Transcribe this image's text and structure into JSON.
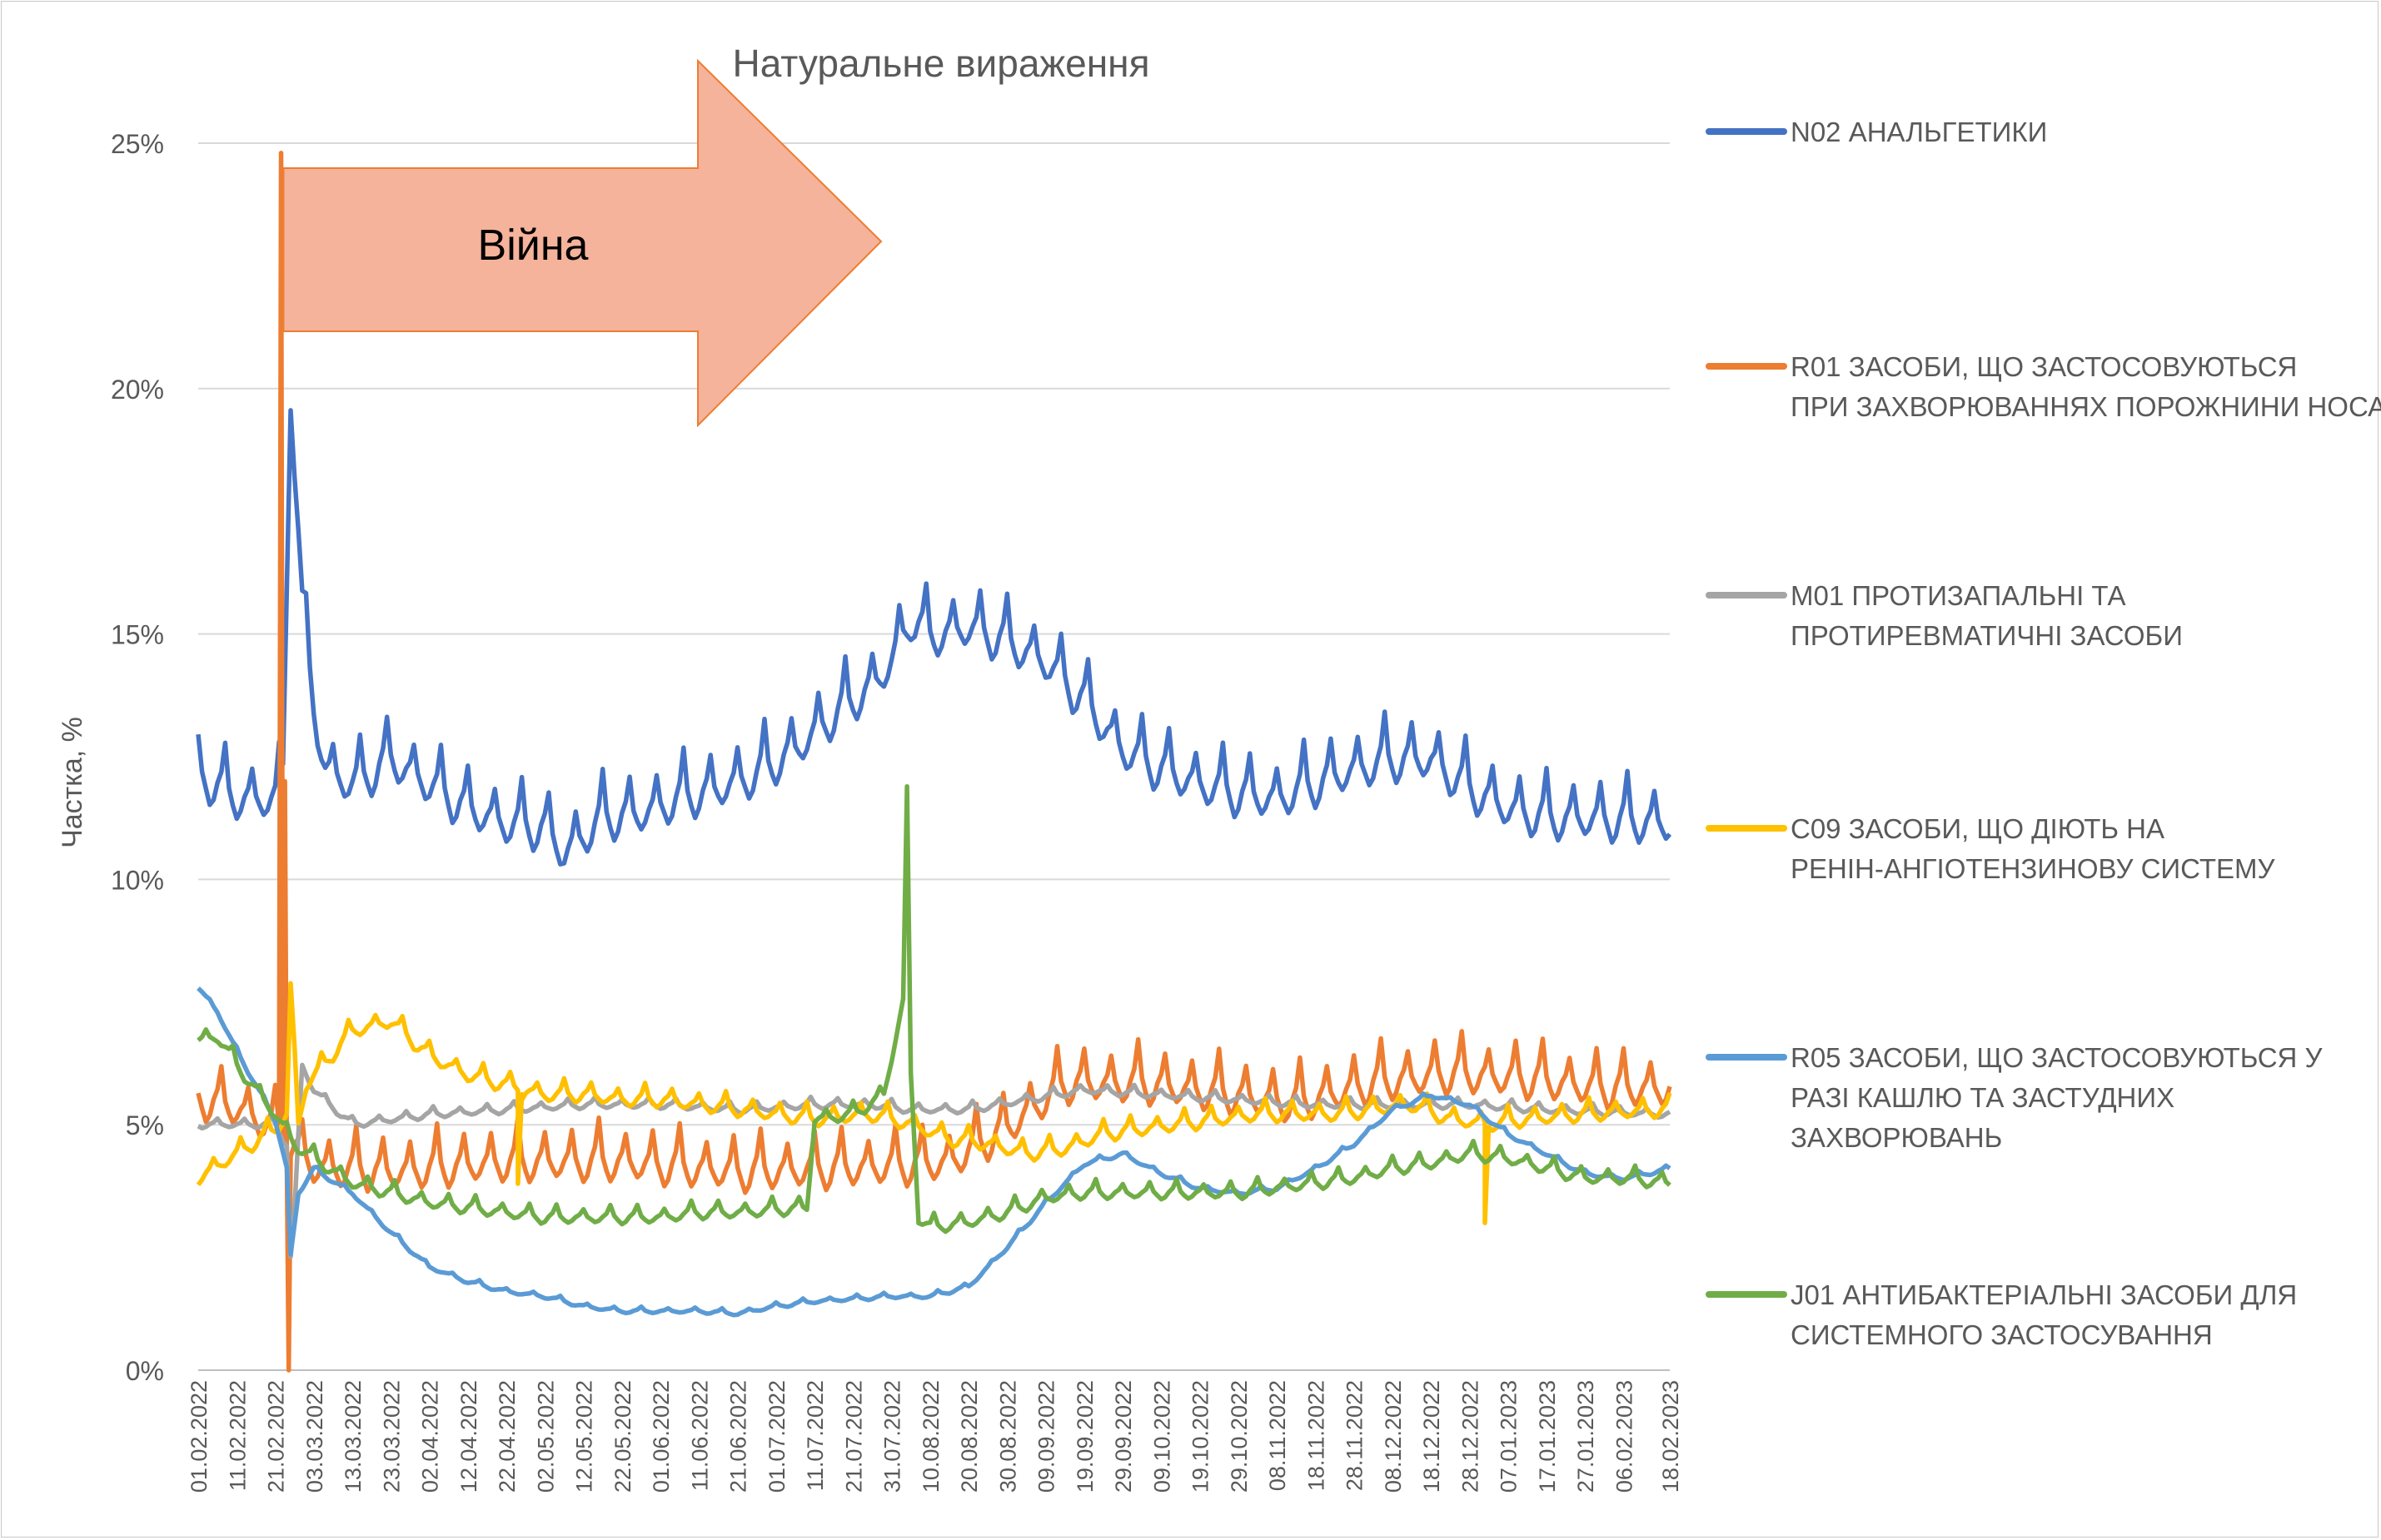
{
  "chart_data": {
    "type": "line",
    "title": "Натуральне вираження",
    "xlabel": "",
    "ylabel": "Частка, %",
    "ylim": [
      0,
      25
    ],
    "yticks": [
      "0%",
      "5%",
      "10%",
      "15%",
      "20%",
      "25%"
    ],
    "x_range": [
      "01.02.2022",
      "18.02.2023"
    ],
    "xticks": [
      "01.02.2022",
      "11.02.2022",
      "21.02.2022",
      "03.03.2022",
      "13.03.2022",
      "23.03.2022",
      "02.04.2022",
      "12.04.2022",
      "22.04.2022",
      "02.05.2022",
      "12.05.2022",
      "22.05.2022",
      "01.06.2022",
      "11.06.2022",
      "21.06.2022",
      "01.07.2022",
      "11.07.2022",
      "21.07.2022",
      "31.07.2022",
      "10.08.2022",
      "20.08.2022",
      "30.08.2022",
      "09.09.2022",
      "19.09.2022",
      "29.09.2022",
      "09.10.2022",
      "19.10.2022",
      "29.10.2022",
      "08.11.2022",
      "18.11.2022",
      "28.11.2022",
      "08.12.2022",
      "18.12.2022",
      "28.12.2022",
      "07.01.2023",
      "17.01.2023",
      "27.01.2023",
      "06.02.2023",
      "18.02.2023"
    ],
    "grid": true,
    "legend": "right",
    "annotation": {
      "label": "Війна",
      "start": "24.02.2022",
      "fill": "#f4b39a",
      "stroke": "#ed7d31"
    },
    "series": [
      {
        "name": "N02 АНАЛЬГЕТИКИ",
        "color": "#4472c4",
        "weekly_amp": 0.9,
        "points": [
          [
            0,
            12.1
          ],
          [
            10,
            11.6
          ],
          [
            20,
            11.6
          ],
          [
            22,
            12.2
          ],
          [
            24,
            20.0
          ],
          [
            27,
            15.5
          ],
          [
            30,
            13.5
          ],
          [
            33,
            12.2
          ],
          [
            40,
            11.9
          ],
          [
            50,
            12.4
          ],
          [
            60,
            11.9
          ],
          [
            70,
            11.4
          ],
          [
            80,
            11.1
          ],
          [
            90,
            11.0
          ],
          [
            95,
            10.5
          ],
          [
            105,
            11.2
          ],
          [
            115,
            11.3
          ],
          [
            125,
            11.6
          ],
          [
            135,
            11.8
          ],
          [
            145,
            12.1
          ],
          [
            155,
            12.6
          ],
          [
            165,
            13.3
          ],
          [
            175,
            13.9
          ],
          [
            180,
            14.4
          ],
          [
            185,
            15.3
          ],
          [
            190,
            14.9
          ],
          [
            200,
            15.1
          ],
          [
            210,
            14.8
          ],
          [
            220,
            14.4
          ],
          [
            230,
            13.6
          ],
          [
            240,
            12.6
          ],
          [
            250,
            12.2
          ],
          [
            260,
            11.9
          ],
          [
            270,
            11.7
          ],
          [
            280,
            11.6
          ],
          [
            290,
            11.9
          ],
          [
            300,
            12.2
          ],
          [
            310,
            12.4
          ],
          [
            320,
            12.4
          ],
          [
            330,
            11.8
          ],
          [
            340,
            11.4
          ],
          [
            350,
            11.2
          ],
          [
            360,
            11.2
          ],
          [
            382,
            11.1
          ]
        ]
      },
      {
        "name": "R01 ЗАСОБИ, ЩО ЗАСТОСОВУЮТЬСЯ ПРИ ЗАХВОРЮВАННЯХ ПОРОЖНИНИ НОСА",
        "color": "#ed7d31",
        "weekly_amp": 0.8,
        "points": [
          [
            0,
            5.5
          ],
          [
            10,
            5.3
          ],
          [
            20,
            4.9
          ],
          [
            23,
            4.7
          ],
          [
            25,
            4.5
          ],
          [
            30,
            4.1
          ],
          [
            50,
            4.0
          ],
          [
            80,
            4.2
          ],
          [
            110,
            4.2
          ],
          [
            140,
            4.0
          ],
          [
            175,
            4.1
          ],
          [
            195,
            4.2
          ],
          [
            210,
            4.9
          ],
          [
            225,
            5.8
          ],
          [
            245,
            5.8
          ],
          [
            265,
            5.6
          ],
          [
            285,
            5.4
          ],
          [
            305,
            5.8
          ],
          [
            325,
            6.0
          ],
          [
            345,
            5.9
          ],
          [
            365,
            5.7
          ],
          [
            382,
            5.7
          ]
        ],
        "spikes": [
          [
            21.5,
            24.8
          ],
          [
            22.5,
            12
          ],
          [
            23.5,
            0
          ]
        ]
      },
      {
        "name": "M01 ПРОТИЗАПАЛЬНІ ТА ПРОТИРЕВМАТИЧНІ ЗАСОБИ",
        "color": "#a5a5a5",
        "weekly_amp": 0.15,
        "points": [
          [
            0,
            5.0
          ],
          [
            10,
            5.0
          ],
          [
            20,
            5.0
          ],
          [
            23,
            4.6
          ],
          [
            24,
            2.3
          ],
          [
            25,
            3.2
          ],
          [
            27,
            6.2
          ],
          [
            30,
            5.7
          ],
          [
            40,
            5.0
          ],
          [
            60,
            5.2
          ],
          [
            80,
            5.3
          ],
          [
            100,
            5.4
          ],
          [
            120,
            5.4
          ],
          [
            140,
            5.3
          ],
          [
            160,
            5.4
          ],
          [
            175,
            5.4
          ],
          [
            185,
            5.3
          ],
          [
            200,
            5.3
          ],
          [
            215,
            5.5
          ],
          [
            230,
            5.7
          ],
          [
            250,
            5.6
          ],
          [
            270,
            5.5
          ],
          [
            290,
            5.4
          ],
          [
            310,
            5.4
          ],
          [
            330,
            5.4
          ],
          [
            350,
            5.3
          ],
          [
            382,
            5.2
          ]
        ]
      },
      {
        "name": "C09 ЗАСОБИ, ЩО ДІЮТЬ НА РЕНІН-АНГІОТЕНЗИНОВУ СИСТЕМУ",
        "color": "#ffc000",
        "weekly_amp": 0.3,
        "points": [
          [
            0,
            3.9
          ],
          [
            10,
            4.4
          ],
          [
            20,
            4.9
          ],
          [
            23,
            5.2
          ],
          [
            24,
            7.8
          ],
          [
            26,
            5.0
          ],
          [
            28,
            5.8
          ],
          [
            40,
            6.9
          ],
          [
            50,
            7.1
          ],
          [
            60,
            6.4
          ],
          [
            70,
            6.0
          ],
          [
            80,
            5.8
          ],
          [
            90,
            5.6
          ],
          [
            100,
            5.6
          ],
          [
            110,
            5.5
          ],
          [
            120,
            5.5
          ],
          [
            140,
            5.3
          ],
          [
            160,
            5.1
          ],
          [
            175,
            5.2
          ],
          [
            185,
            5.0
          ],
          [
            195,
            4.7
          ],
          [
            205,
            4.6
          ],
          [
            215,
            4.4
          ],
          [
            225,
            4.5
          ],
          [
            235,
            4.8
          ],
          [
            245,
            4.9
          ],
          [
            255,
            5.0
          ],
          [
            265,
            5.1
          ],
          [
            275,
            5.2
          ],
          [
            285,
            5.2
          ],
          [
            295,
            5.2
          ],
          [
            305,
            5.3
          ],
          [
            315,
            5.4
          ],
          [
            325,
            5.1
          ],
          [
            335,
            5.0
          ],
          [
            345,
            5.1
          ],
          [
            360,
            5.2
          ],
          [
            382,
            5.3
          ]
        ],
        "spikes": [
          [
            83,
            3.8
          ],
          [
            84,
            5.5
          ],
          [
            334,
            3.0
          ]
        ]
      },
      {
        "name": "R05 ЗАСОБИ, ЩО ЗАСТОСОВУЮТЬСЯ У РАЗІ КАШЛЮ ТА ЗАСТУДНИХ ЗАХВОРЮВАНЬ",
        "color": "#5b9bd5",
        "weekly_amp": 0.08,
        "points": [
          [
            0,
            7.8
          ],
          [
            5,
            7.3
          ],
          [
            10,
            6.5
          ],
          [
            20,
            5.1
          ],
          [
            23,
            4.1
          ],
          [
            24,
            2.3
          ],
          [
            26,
            3.6
          ],
          [
            30,
            4.1
          ],
          [
            40,
            3.6
          ],
          [
            50,
            2.8
          ],
          [
            60,
            2.1
          ],
          [
            70,
            1.8
          ],
          [
            80,
            1.6
          ],
          [
            90,
            1.5
          ],
          [
            100,
            1.3
          ],
          [
            110,
            1.2
          ],
          [
            120,
            1.2
          ],
          [
            130,
            1.2
          ],
          [
            140,
            1.15
          ],
          [
            150,
            1.3
          ],
          [
            160,
            1.4
          ],
          [
            170,
            1.45
          ],
          [
            180,
            1.5
          ],
          [
            190,
            1.5
          ],
          [
            200,
            1.7
          ],
          [
            210,
            2.5
          ],
          [
            220,
            3.4
          ],
          [
            230,
            4.2
          ],
          [
            240,
            4.4
          ],
          [
            250,
            4.0
          ],
          [
            260,
            3.7
          ],
          [
            270,
            3.6
          ],
          [
            280,
            3.7
          ],
          [
            290,
            4.1
          ],
          [
            300,
            4.6
          ],
          [
            310,
            5.3
          ],
          [
            320,
            5.6
          ],
          [
            330,
            5.4
          ],
          [
            340,
            4.8
          ],
          [
            350,
            4.4
          ],
          [
            360,
            4.0
          ],
          [
            370,
            3.9
          ],
          [
            382,
            4.1
          ]
        ]
      },
      {
        "name": "J01 АНТИБАКТЕРІАЛЬНІ ЗАСОБИ ДЛЯ СИСТЕМНОГО ЗАСТОСУВАННЯ",
        "color": "#70ad47",
        "weekly_amp": 0.25,
        "points": [
          [
            0,
            6.7
          ],
          [
            5,
            6.8
          ],
          [
            10,
            6.2
          ],
          [
            20,
            5.2
          ],
          [
            25,
            4.6
          ],
          [
            30,
            4.3
          ],
          [
            40,
            3.8
          ],
          [
            50,
            3.6
          ],
          [
            60,
            3.4
          ],
          [
            70,
            3.3
          ],
          [
            80,
            3.2
          ],
          [
            90,
            3.1
          ],
          [
            100,
            3.1
          ],
          [
            110,
            3.1
          ],
          [
            120,
            3.1
          ],
          [
            130,
            3.2
          ],
          [
            140,
            3.2
          ],
          [
            158,
            3.3
          ],
          [
            160,
            5.1
          ],
          [
            170,
            5.2
          ],
          [
            178,
            5.6
          ],
          [
            183,
            7.5
          ],
          [
            184,
            11.7
          ],
          [
            185,
            6.0
          ],
          [
            187,
            3.1
          ],
          [
            190,
            2.9
          ],
          [
            200,
            3.0
          ],
          [
            210,
            3.2
          ],
          [
            220,
            3.5
          ],
          [
            230,
            3.6
          ],
          [
            240,
            3.6
          ],
          [
            250,
            3.6
          ],
          [
            260,
            3.6
          ],
          [
            270,
            3.6
          ],
          [
            280,
            3.7
          ],
          [
            290,
            3.8
          ],
          [
            300,
            3.9
          ],
          [
            310,
            4.1
          ],
          [
            320,
            4.2
          ],
          [
            330,
            4.4
          ],
          [
            340,
            4.3
          ],
          [
            350,
            4.1
          ],
          [
            360,
            3.9
          ],
          [
            370,
            3.9
          ],
          [
            382,
            3.8
          ]
        ]
      }
    ]
  }
}
